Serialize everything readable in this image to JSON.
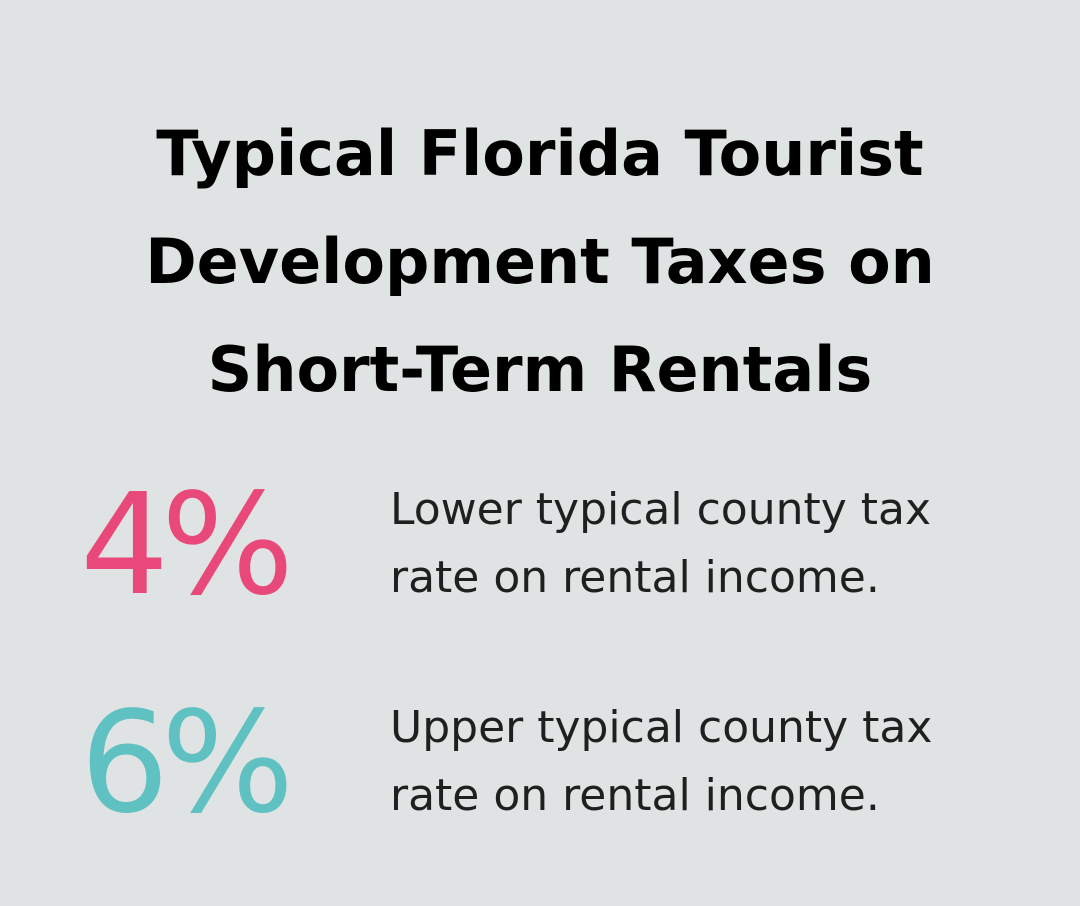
{
  "title": "Typical Florida Tourist Development Taxes on Short-Term Rentals",
  "stats": [
    {
      "value": "4%",
      "description": "Lower typical county tax rate on rental income.",
      "color": "#e8497a"
    },
    {
      "value": "6%",
      "description": "Upper typical county tax rate on rental income.",
      "color": "#5fc1c2"
    }
  ]
}
